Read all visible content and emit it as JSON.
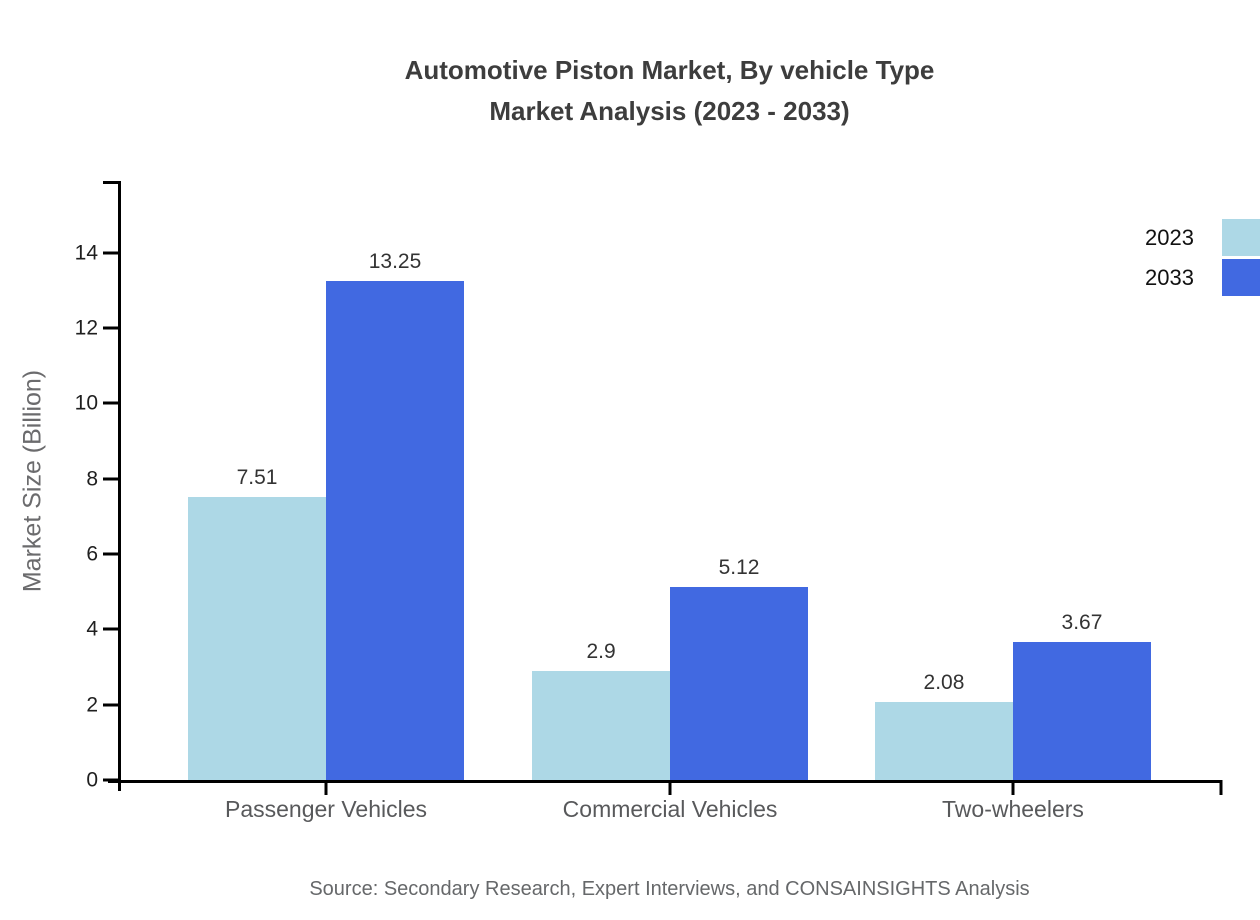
{
  "title": {
    "line1": "Automotive Piston Market, By vehicle Type",
    "line2": "Market Analysis (2023 - 2033)"
  },
  "source_note": "Source: Secondary Research, Expert Interviews, and CONSAINSIGHTS Analysis",
  "chart_data": {
    "type": "bar",
    "title": "Automotive Piston Market, By vehicle Type — Market Analysis (2023 - 2033)",
    "categories": [
      "Passenger Vehicles",
      "Commercial Vehicles",
      "Two-wheelers"
    ],
    "series": [
      {
        "name": "2023",
        "color": "#ADD8E6",
        "values": [
          7.51,
          2.9,
          2.08
        ]
      },
      {
        "name": "2033",
        "color": "#4169E1",
        "values": [
          13.25,
          5.12,
          3.67
        ]
      }
    ],
    "xlabel": "",
    "ylabel": "Market Size (Billion)",
    "ylim": [
      0,
      15.9
    ],
    "yticks": [
      0,
      2,
      4,
      6,
      8,
      10,
      12,
      14
    ],
    "grid": false,
    "data_labels": true,
    "legend_position": "top-right",
    "axis_color": "#000000",
    "text_colors": {
      "title": "#3d3d3d",
      "tick_labels": "#1f1f1f",
      "category_labels": "#58595b",
      "axis_title": "#6b6b6d",
      "source": "#66686a"
    }
  }
}
